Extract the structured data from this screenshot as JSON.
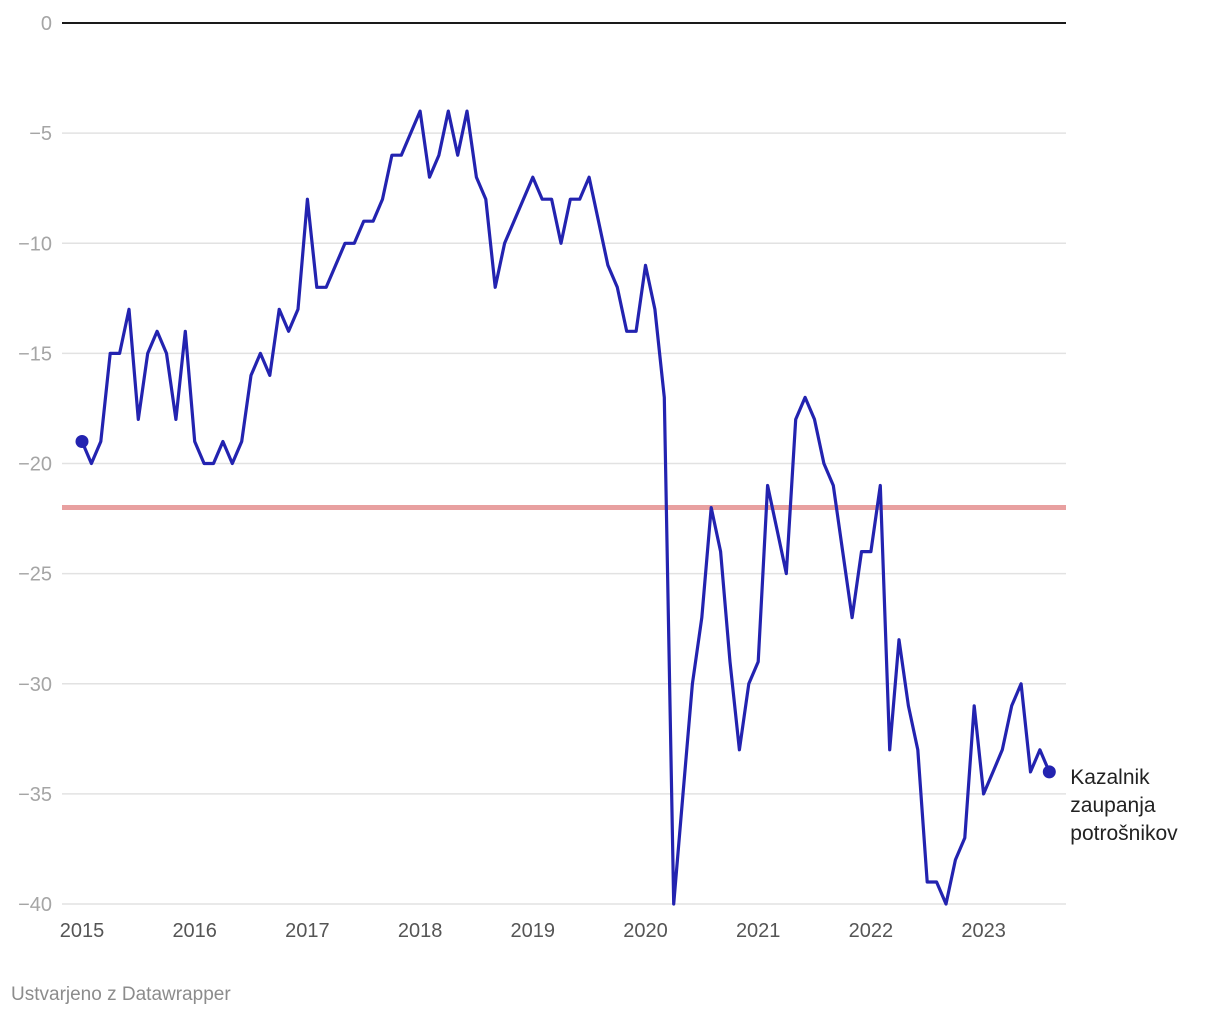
{
  "chart_data": {
    "type": "line",
    "title": "",
    "xlabel": "",
    "ylabel": "",
    "ylim": [
      -40,
      0
    ],
    "yticks": [
      0,
      -5,
      -10,
      -15,
      -20,
      -25,
      -30,
      -35,
      -40
    ],
    "ytick_labels": [
      "0",
      "−5",
      "−10",
      "−15",
      "−20",
      "−25",
      "−30",
      "−35",
      "−40"
    ],
    "xlim": [
      2015,
      2023.92
    ],
    "xticks": [
      2015,
      2016,
      2017,
      2018,
      2019,
      2020,
      2021,
      2022,
      2023
    ],
    "xtick_labels": [
      "2015",
      "2016",
      "2017",
      "2018",
      "2019",
      "2020",
      "2021",
      "2022",
      "2023"
    ],
    "grid": true,
    "reference_line": {
      "y": -22,
      "color": "#e8a0a0"
    },
    "series": [
      {
        "name": "Kazalnik zaupanja potrošnikov",
        "label_lines": [
          "Kazalnik",
          "zaupanja",
          "potrošnikov"
        ],
        "color": "#2323b0",
        "start_year": 2015,
        "step": 0.08333,
        "values": [
          -19,
          -20,
          -19,
          -15,
          -15,
          -13,
          -18,
          -15,
          -14,
          -15,
          -18,
          -14,
          -19,
          -20,
          -20,
          -19,
          -20,
          -19,
          -16,
          -15,
          -16,
          -13,
          -14,
          -13,
          -8,
          -12,
          -12,
          -11,
          -10,
          -10,
          -9,
          -9,
          -8,
          -6,
          -6,
          -5,
          -4,
          -7,
          -6,
          -4,
          -6,
          -4,
          -7,
          -8,
          -12,
          -10,
          -9,
          -8,
          -7,
          -8,
          -8,
          -10,
          -8,
          -8,
          -7,
          -9,
          -11,
          -12,
          -14,
          -14,
          -11,
          -13,
          -17,
          -40,
          -35,
          -30,
          -27,
          -22,
          -24,
          -29,
          -33,
          -30,
          -29,
          -21,
          -23,
          -25,
          -18,
          -17,
          -18,
          -20,
          -21,
          -24,
          -27,
          -24,
          -24,
          -21,
          -33,
          -28,
          -31,
          -33,
          -39,
          -39,
          -40,
          -38,
          -37,
          -31,
          -35,
          -34,
          -33,
          -31,
          -30,
          -34,
          -33,
          -34
        ]
      }
    ],
    "credit": "Ustvarjeno z Datawrapper"
  }
}
